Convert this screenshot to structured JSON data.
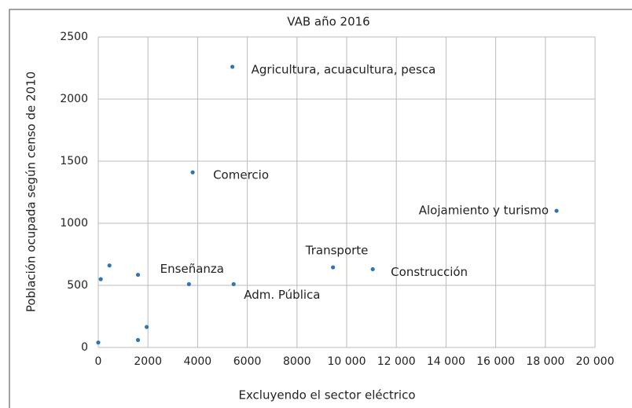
{
  "chart_data": {
    "type": "scatter",
    "title": "VAB año 2016",
    "x_label": "Excluyendo el sector eléctrico",
    "y_label": "Población ocupada según censo de 2010",
    "color": "#2e75b6",
    "grid": true,
    "x": [
      5400,
      3800,
      18450,
      9450,
      11050,
      5450,
      3650,
      1600,
      450,
      100,
      1950,
      1600,
      0
    ],
    "values": [
      2260,
      1410,
      1100,
      645,
      630,
      510,
      510,
      585,
      660,
      550,
      165,
      60,
      40
    ],
    "labels": [
      "Agricultura, acuacultura, pesca",
      "Comercio",
      "Alojamiento y turismo",
      "Transporte",
      "Construcción",
      "Adm. Pública",
      "Enseñanza",
      null,
      null,
      null,
      null,
      null,
      null
    ],
    "xlim": [
      0,
      20000
    ],
    "xticks": [
      0,
      2000,
      4000,
      6000,
      8000,
      {
        "value": 10000,
        "label": "10 000"
      },
      {
        "value": 12000,
        "label": "12 000"
      },
      {
        "value": 14000,
        "label": "14 000"
      },
      {
        "value": 16000,
        "label": "16 000"
      },
      {
        "value": 18000,
        "label": "18 000"
      },
      {
        "value": 20000,
        "label": "20 000"
      }
    ],
    "ylim": [
      0,
      2500
    ],
    "yticks": [
      0,
      500,
      1000,
      1500,
      2000,
      2500
    ]
  }
}
